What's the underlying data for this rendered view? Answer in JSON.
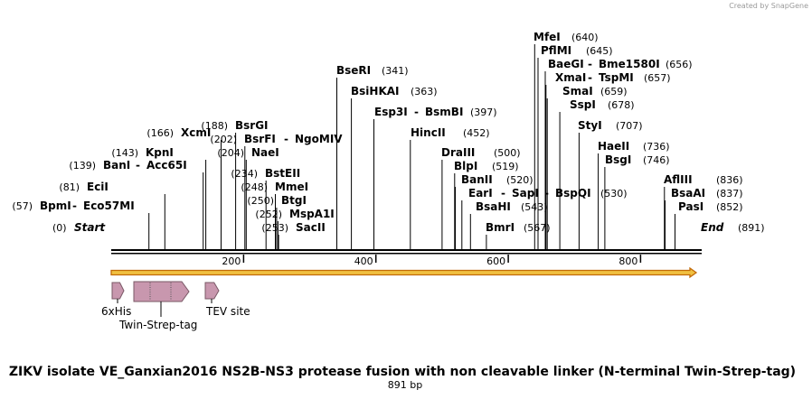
{
  "credit": "Created by SnapGene",
  "map": {
    "title": "ZIKV isolate VE_Ganxian2016 NS2B-NS3 protease fusion with non cleavable linker (N-terminal Twin-Strep-tag)",
    "length_label": "891 bp",
    "length_bp": 891,
    "start_label": "Start",
    "end_label": "End",
    "start_pos": "(0)",
    "end_pos": "(891)",
    "ticks": [
      "200",
      "400",
      "600",
      "800"
    ]
  },
  "enzymes": [
    {
      "label": "BpmI",
      "label2": "Eco57MI",
      "pos": "(57)",
      "bp": 57
    },
    {
      "label": "EciI",
      "pos": "(81)",
      "bp": 81
    },
    {
      "label": "BanI",
      "label2": "Acc65I",
      "pos": "(139)",
      "bp": 139
    },
    {
      "label": "KpnI",
      "pos": "(143)",
      "bp": 143
    },
    {
      "label": "XcmI",
      "pos": "(166)",
      "bp": 166
    },
    {
      "label": "BsrGI",
      "pos": "(188)",
      "bp": 188
    },
    {
      "label": "BsrFI",
      "label2": "NgoMIV",
      "pos": "(202)",
      "bp": 202
    },
    {
      "label": "NaeI",
      "pos": "(204)",
      "bp": 204
    },
    {
      "label": "BstEII",
      "pos": "(234)",
      "bp": 234
    },
    {
      "label": "MmeI",
      "pos": "(248)",
      "bp": 248
    },
    {
      "label": "BtgI",
      "pos": "(250)",
      "bp": 250
    },
    {
      "label": "MspA1I",
      "pos": "(252)",
      "bp": 252
    },
    {
      "label": "SacII",
      "pos": "(253)",
      "bp": 253
    },
    {
      "label": "BseRI",
      "pos": "(341)",
      "bp": 341
    },
    {
      "label": "BsiHKAI",
      "pos": "(363)",
      "bp": 363
    },
    {
      "label": "Esp3I",
      "label2": "BsmBI",
      "pos": "(397)",
      "bp": 397
    },
    {
      "label": "HincII",
      "pos": "(452)",
      "bp": 452
    },
    {
      "label": "DraIII",
      "pos": "(500)",
      "bp": 500
    },
    {
      "label": "BlpI",
      "pos": "(519)",
      "bp": 519
    },
    {
      "label": "BanII",
      "pos": "(520)",
      "bp": 520
    },
    {
      "label": "EarI",
      "label2": "SapI",
      "label3": "BspQI",
      "pos": "(530)",
      "bp": 530
    },
    {
      "label": "BsaHI",
      "pos": "(543)",
      "bp": 543
    },
    {
      "label": "BmrI",
      "pos": "(567)",
      "bp": 567
    },
    {
      "label": "MfeI",
      "pos": "(640)",
      "bp": 640
    },
    {
      "label": "PflMI",
      "pos": "(645)",
      "bp": 645
    },
    {
      "label": "BaeGI",
      "label2": "Bme1580I",
      "pos": "(656)",
      "bp": 656
    },
    {
      "label": "XmaI",
      "label2": "TspMI",
      "pos": "(657)",
      "bp": 657
    },
    {
      "label": "SmaI",
      "pos": "(659)",
      "bp": 659
    },
    {
      "label": "SspI",
      "pos": "(678)",
      "bp": 678
    },
    {
      "label": "StyI",
      "pos": "(707)",
      "bp": 707
    },
    {
      "label": "HaeII",
      "pos": "(736)",
      "bp": 736
    },
    {
      "label": "BsgI",
      "pos": "(746)",
      "bp": 746
    },
    {
      "label": "AflIII",
      "pos": "(836)",
      "bp": 836
    },
    {
      "label": "BsaAI",
      "pos": "(837)",
      "bp": 837
    },
    {
      "label": "PasI",
      "pos": "(852)",
      "bp": 852
    }
  ],
  "features": [
    {
      "name": "6xHis",
      "start_bp": 1,
      "end_bp": 18
    },
    {
      "name": "Twin-Strep-tag",
      "start_bp": 36,
      "end_bp": 120
    },
    {
      "name": "TEV site",
      "start_bp": 141,
      "end_bp": 162
    }
  ],
  "colors": {
    "feature_fill": "#c897ae",
    "feature_stroke": "#7a5866",
    "orf_fill": "#f0c040",
    "orf_stroke": "#c26a08",
    "line": "#000000"
  }
}
